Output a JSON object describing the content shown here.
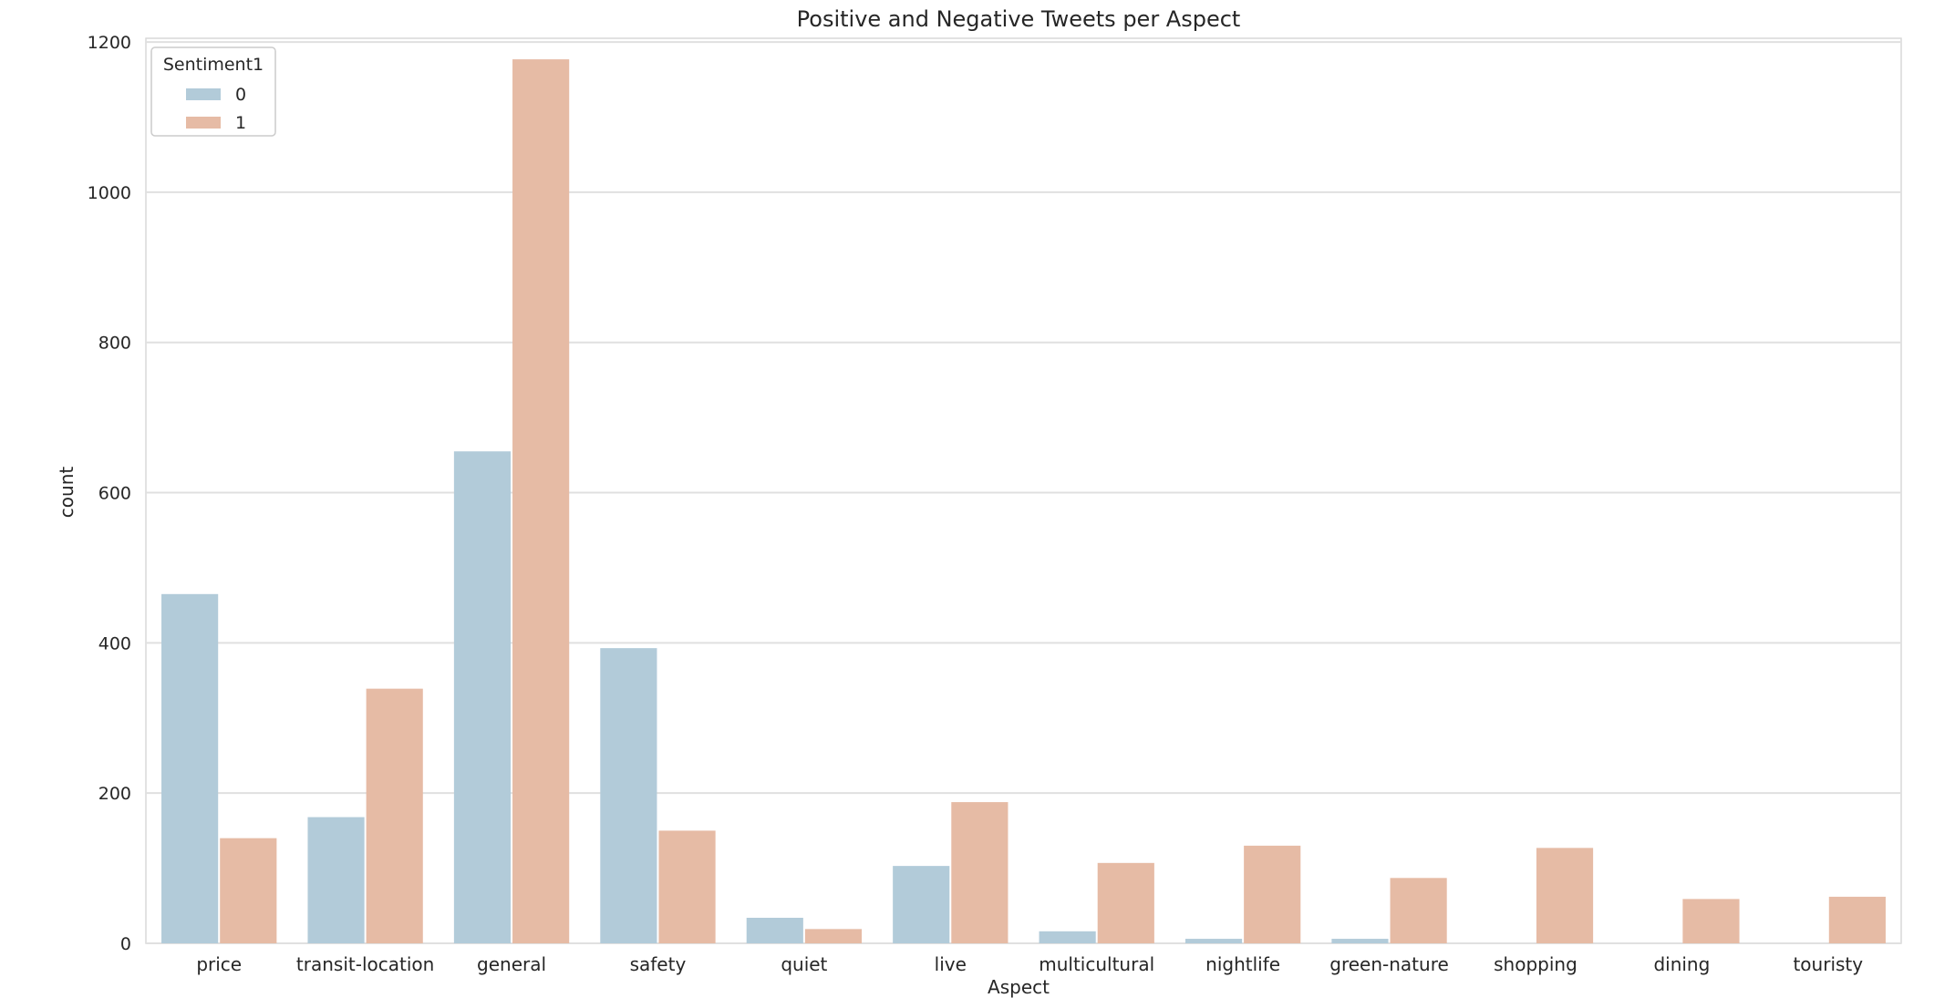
{
  "chart_data": {
    "type": "bar",
    "title": "Positive and Negative Tweets per Aspect",
    "xlabel": "Aspect",
    "ylabel": "count",
    "categories": [
      "price",
      "transit-location",
      "general",
      "safety",
      "quiet",
      "live",
      "multicultural",
      "nightlife",
      "green-nature",
      "shopping",
      "dining",
      "touristy"
    ],
    "series": [
      {
        "name": "0",
        "color": "#b2cbd9",
        "values": [
          465,
          168,
          655,
          393,
          34,
          103,
          16,
          6,
          6,
          0,
          0,
          0
        ]
      },
      {
        "name": "1",
        "color": "#e6bba5",
        "values": [
          140,
          339,
          1177,
          150,
          19,
          188,
          107,
          130,
          87,
          127,
          59,
          62
        ]
      }
    ],
    "ylim": [
      0,
      1205
    ],
    "yticks": [
      0,
      200,
      400,
      600,
      800,
      1000,
      1200
    ],
    "grid": true,
    "legend": {
      "title": "Sentiment1",
      "placement": "top-left"
    }
  }
}
